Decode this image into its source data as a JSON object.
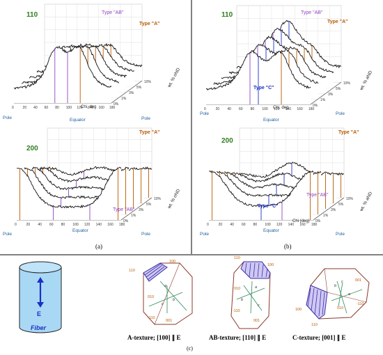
{
  "panel_a": {
    "top": {
      "hkl": "110",
      "type_ab": "Type \"AB\"",
      "type_a": "Type \"A\"",
      "x_ticks": [
        "0",
        "20",
        "40",
        "60",
        "80",
        "100",
        "120",
        "140",
        "160",
        "180"
      ],
      "xlabel": "Chi, deg",
      "depth_labels": [
        "0%",
        "1%",
        "3%",
        "5%",
        "10%"
      ],
      "depth_axis": "wt. % oND",
      "pole_left": "Pole",
      "pole_right": "Pole",
      "equator": "Equator"
    },
    "bottom": {
      "hkl": "200",
      "type_a": "Type \"A\"",
      "type_ab": "Type \"AB\"",
      "x_ticks": [
        "0",
        "20",
        "40",
        "60",
        "80",
        "100",
        "120",
        "140",
        "160",
        "180"
      ],
      "xlabel": "",
      "depth_labels": [
        "0%",
        "1%",
        "3%",
        "5%",
        "10%"
      ],
      "depth_axis": "wt. % oND",
      "pole_left": "Pole",
      "pole_right": "Pole",
      "equator": "Equator"
    },
    "caption": "(a)"
  },
  "panel_b": {
    "top": {
      "hkl": "110",
      "type_ab": "Type \"AB\"",
      "type_a": "Type \"A\"",
      "type_c": "Type \"C\"",
      "x_ticks": [
        "0",
        "20",
        "40",
        "60",
        "80",
        "100",
        "120",
        "140",
        "160",
        "180"
      ],
      "xlabel": "Chi, deg",
      "depth_labels": [
        "0%",
        "1%",
        "3%",
        "5%",
        "10%"
      ],
      "depth_axis": "wt. % aND",
      "pole_left": "Pole",
      "pole_right": "Pole",
      "equator": "Equator"
    },
    "bottom": {
      "hkl": "200",
      "type_a": "Type \"A\"",
      "type_ab": "Type \"AB\"",
      "type_c": "Type \"C\"",
      "x_ticks": [
        "0",
        "20",
        "40",
        "60",
        "80",
        "100",
        "120",
        "140",
        "160",
        "180"
      ],
      "xlabel": "Chi (deg)",
      "depth_labels": [
        "0%",
        "1%",
        "3%",
        "5%",
        "10%"
      ],
      "depth_axis": "wt. % aND",
      "pole_left": "Pole",
      "pole_right": "Pole",
      "equator": "Equator"
    },
    "caption": "(b)"
  },
  "panel_c": {
    "fiber": {
      "arrow_label": "E",
      "name": "Fiber"
    },
    "crystals": [
      {
        "faces": [
          "100",
          "110",
          "010",
          "-110",
          "001"
        ],
        "axes": [
          "a",
          "b",
          "c"
        ],
        "caption": "A-texture; [100] ∥ E"
      },
      {
        "faces": [
          "110",
          "100",
          "010",
          "-110",
          "001"
        ],
        "axes": [
          "a",
          "b",
          "c"
        ],
        "caption": "AB-texture; [110] ∥ E"
      },
      {
        "faces": [
          "001",
          "100",
          "010",
          "-110",
          "110"
        ],
        "axes": [
          "a",
          "b",
          "c"
        ],
        "caption": "C-texture; [001] ∥ E"
      }
    ],
    "caption": "(c)"
  },
  "colors": {
    "hkl_label": "#2e7d1e",
    "type_a": "#b85a00",
    "type_ab": "#8e44c9",
    "type_c": "#1c2fc4",
    "pole": "#1f5fa0",
    "fiber_fill": "#a9d8f5"
  }
}
